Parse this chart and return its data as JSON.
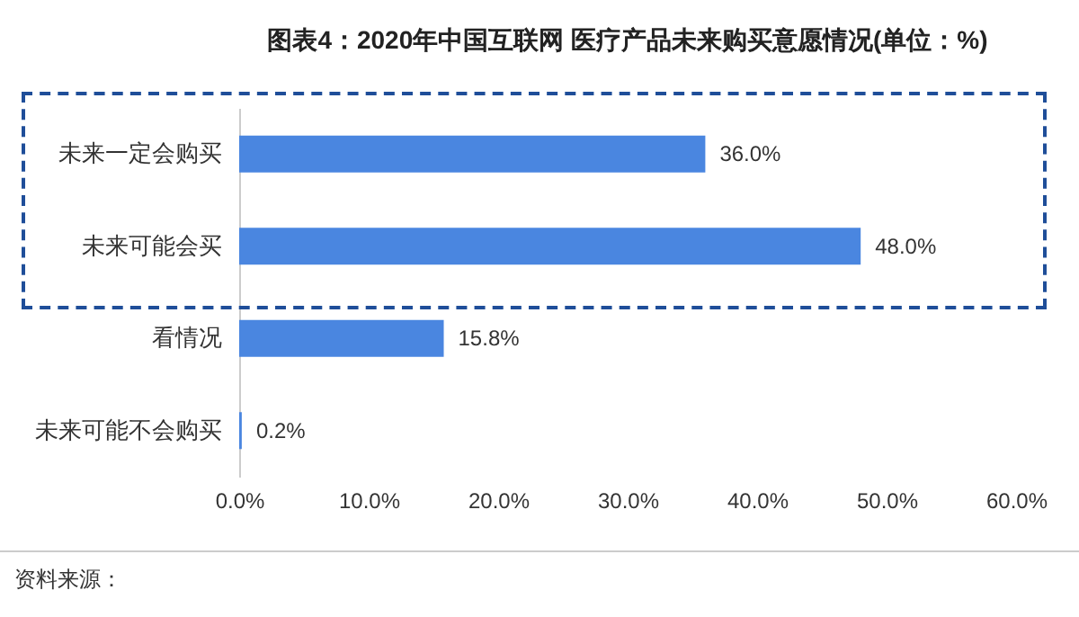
{
  "chart_data": {
    "type": "bar",
    "orientation": "horizontal",
    "title": "图表4：2020年中国互联网 医疗产品未来购买意愿情况(单位：%)",
    "categories": [
      "未来一定会购买",
      "未来可能会买",
      "看情况",
      "未来可能不会购买"
    ],
    "values": [
      36.0,
      48.0,
      15.8,
      0.2
    ],
    "value_labels": [
      "36.0%",
      "48.0%",
      "15.8%",
      "0.2%"
    ],
    "color": "#4a86e0",
    "xlim": [
      0,
      60
    ],
    "xticks": [
      {
        "value": 0,
        "label": "0.0%"
      },
      {
        "value": 10,
        "label": "10.0%"
      },
      {
        "value": 20,
        "label": "20.0%"
      },
      {
        "value": 30,
        "label": "30.0%"
      },
      {
        "value": 40,
        "label": "40.0%"
      },
      {
        "value": 50,
        "label": "50.0%"
      },
      {
        "value": 60,
        "label": "60.0%"
      }
    ],
    "grid": false,
    "annotations": [
      "资料来源："
    ]
  }
}
